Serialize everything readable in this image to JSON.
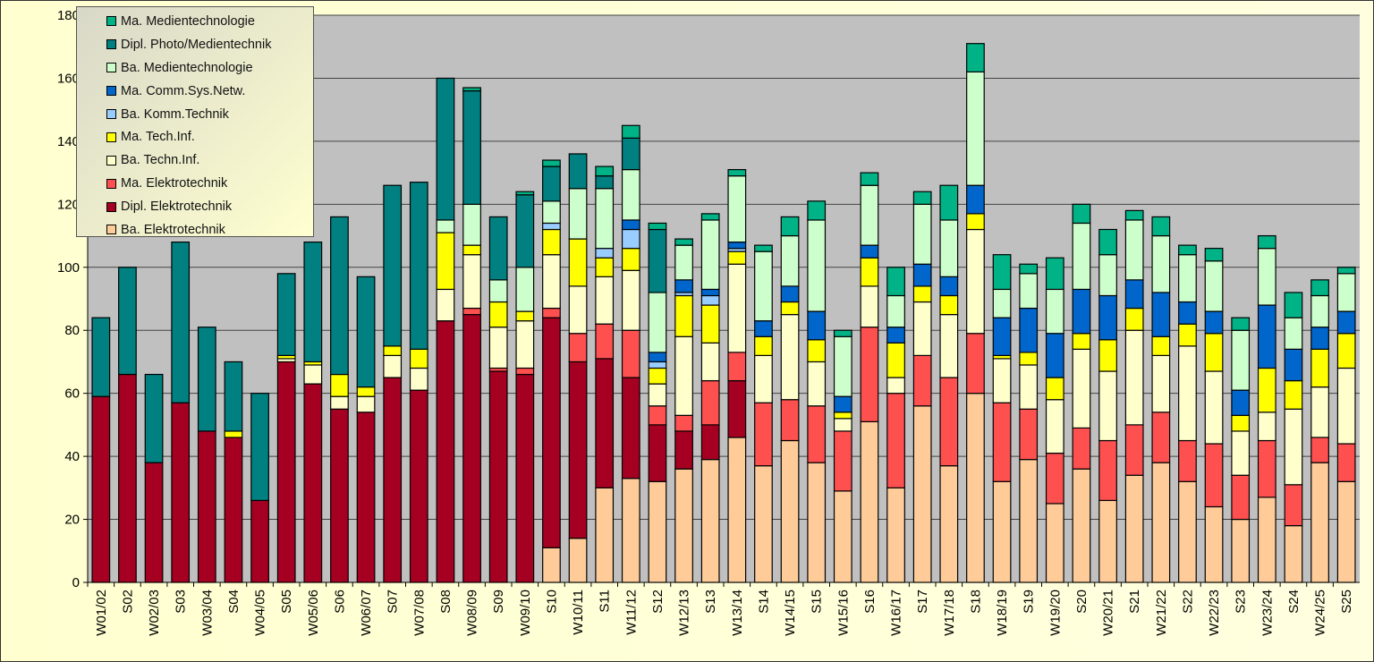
{
  "chart_data": {
    "type": "bar",
    "stacked": true,
    "title": "",
    "xlabel": "",
    "ylabel": "",
    "ylim": [
      0,
      180
    ],
    "yticks": [
      0,
      20,
      40,
      60,
      80,
      100,
      120,
      140,
      160,
      180
    ],
    "grid": true,
    "legend_position": "top-left",
    "categories": [
      "W01/02",
      "S02",
      "W02/03",
      "S03",
      "W03/04",
      "S04",
      "W04/05",
      "S05",
      "W05/06",
      "S06",
      "W06/07",
      "S07",
      "W07/08",
      "S08",
      "W08/09",
      "S09",
      "W09/10",
      "S10",
      "W10/11",
      "S11",
      "W11/12",
      "S12",
      "W12/13",
      "S13",
      "W13/14",
      "S14",
      "W14/15",
      "S15",
      "W15/16",
      "S16",
      "W16/17",
      "S17",
      "W17/18",
      "S18",
      "W18/19",
      "S19",
      "W19/20",
      "S20",
      "W20/21",
      "S21",
      "W21/22",
      "S22",
      "W22/23",
      "S23",
      "W23/24",
      "S24",
      "W24/25",
      "S25"
    ],
    "series": [
      {
        "name": "Ba. Elektrotechnik",
        "color": "#FFCC99",
        "values": [
          0,
          0,
          0,
          0,
          0,
          0,
          0,
          0,
          0,
          0,
          0,
          0,
          0,
          0,
          0,
          0,
          0,
          11,
          14,
          30,
          33,
          32,
          36,
          39,
          46,
          37,
          45,
          38,
          29,
          51,
          30,
          56,
          37,
          60,
          32,
          39,
          25,
          36,
          26,
          34,
          38,
          32,
          24,
          20,
          27,
          18,
          38,
          32
        ]
      },
      {
        "name": "Dipl. Elektrotechnik",
        "color": "#A50021",
        "values": [
          59,
          66,
          38,
          57,
          48,
          46,
          26,
          70,
          63,
          55,
          54,
          65,
          61,
          83,
          85,
          67,
          66,
          73,
          56,
          41,
          32,
          18,
          12,
          11,
          18,
          0,
          0,
          0,
          0,
          0,
          0,
          0,
          0,
          0,
          0,
          0,
          0,
          0,
          0,
          0,
          0,
          0,
          0,
          0,
          0,
          0,
          0,
          0
        ]
      },
      {
        "name": "Ma. Elektrotechnik",
        "color": "#FF5050",
        "values": [
          0,
          0,
          0,
          0,
          0,
          0,
          0,
          0,
          0,
          0,
          0,
          0,
          0,
          0,
          2,
          1,
          2,
          3,
          9,
          11,
          15,
          6,
          5,
          14,
          9,
          20,
          13,
          18,
          19,
          30,
          30,
          16,
          28,
          19,
          25,
          16,
          16,
          13,
          19,
          16,
          16,
          13,
          20,
          14,
          18,
          13,
          8,
          12
        ]
      },
      {
        "name": "Ba. Techn.Inf.",
        "color": "#FFFFCC",
        "values": [
          0,
          0,
          0,
          0,
          0,
          0,
          0,
          1,
          6,
          4,
          5,
          7,
          7,
          10,
          17,
          13,
          15,
          17,
          15,
          15,
          19,
          7,
          25,
          12,
          28,
          15,
          27,
          14,
          4,
          13,
          5,
          17,
          20,
          33,
          14,
          14,
          17,
          25,
          22,
          30,
          18,
          30,
          23,
          14,
          9,
          24,
          16,
          24
        ]
      },
      {
        "name": "Ma. Tech.Inf.",
        "color": "#FFFF00",
        "values": [
          0,
          0,
          0,
          0,
          0,
          2,
          0,
          1,
          1,
          7,
          3,
          3,
          6,
          18,
          3,
          8,
          3,
          8,
          15,
          6,
          7,
          5,
          13,
          12,
          4,
          6,
          4,
          7,
          2,
          9,
          11,
          5,
          6,
          5,
          1,
          4,
          7,
          5,
          10,
          7,
          6,
          7,
          12,
          5,
          14,
          9,
          12,
          11
        ]
      },
      {
        "name": "Ba. Komm.Technik",
        "color": "#99CCFF",
        "values": [
          0,
          0,
          0,
          0,
          0,
          0,
          0,
          0,
          0,
          0,
          0,
          0,
          0,
          0,
          0,
          0,
          0,
          2,
          0,
          3,
          6,
          2,
          1,
          3,
          1,
          0,
          0,
          0,
          0,
          0,
          0,
          0,
          0,
          0,
          0,
          0,
          0,
          0,
          0,
          0,
          0,
          0,
          0,
          0,
          0,
          0,
          0,
          0
        ]
      },
      {
        "name": "Ma. Comm.Sys.Netw.",
        "color": "#0066CC",
        "values": [
          0,
          0,
          0,
          0,
          0,
          0,
          0,
          0,
          0,
          0,
          0,
          0,
          0,
          0,
          0,
          0,
          0,
          0,
          0,
          0,
          3,
          3,
          4,
          2,
          2,
          5,
          5,
          9,
          5,
          4,
          5,
          7,
          6,
          9,
          12,
          14,
          14,
          14,
          14,
          9,
          14,
          7,
          7,
          8,
          20,
          10,
          7,
          7
        ]
      },
      {
        "name": "Ba. Medientechnologie",
        "color": "#CCFFCC",
        "values": [
          0,
          0,
          0,
          0,
          0,
          0,
          0,
          0,
          0,
          0,
          0,
          0,
          0,
          4,
          13,
          7,
          14,
          7,
          16,
          19,
          16,
          19,
          11,
          22,
          21,
          22,
          16,
          29,
          19,
          19,
          10,
          19,
          18,
          36,
          9,
          11,
          14,
          21,
          13,
          19,
          18,
          15,
          16,
          19,
          18,
          10,
          10,
          12
        ]
      },
      {
        "name": "Dipl. Photo/Medientechnik",
        "color": "#008080",
        "values": [
          25,
          34,
          28,
          51,
          33,
          22,
          34,
          26,
          38,
          50,
          35,
          51,
          53,
          45,
          36,
          20,
          23,
          11,
          11,
          4,
          10,
          20,
          0,
          0,
          0,
          0,
          0,
          0,
          0,
          0,
          0,
          0,
          0,
          0,
          0,
          0,
          0,
          0,
          0,
          0,
          0,
          0,
          0,
          0,
          0,
          0,
          0,
          0
        ]
      },
      {
        "name": "Ma. Medientechnologie",
        "color": "#00B386",
        "values": [
          0,
          0,
          0,
          0,
          0,
          0,
          0,
          0,
          0,
          0,
          0,
          0,
          0,
          0,
          1,
          0,
          1,
          2,
          0,
          3,
          4,
          2,
          2,
          2,
          2,
          2,
          6,
          6,
          2,
          4,
          9,
          4,
          11,
          9,
          11,
          3,
          10,
          6,
          8,
          3,
          6,
          3,
          4,
          4,
          4,
          8,
          5,
          2
        ]
      }
    ]
  }
}
